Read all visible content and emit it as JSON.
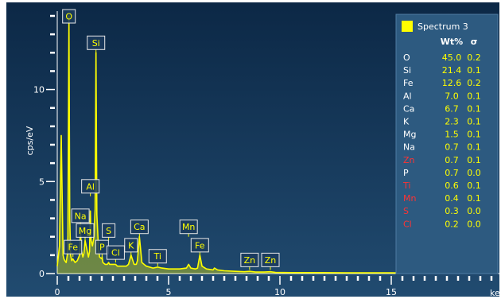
{
  "chart_data": {
    "type": "line",
    "title": "",
    "xlabel": "keV",
    "ylabel": "cps/eV",
    "xlim": [
      0,
      20
    ],
    "ylim": [
      0,
      14
    ],
    "x_ticks": [
      0,
      5,
      10,
      15
    ],
    "y_ticks": [
      0,
      5,
      10
    ],
    "grid": false,
    "series": [
      {
        "name": "Spectrum 3",
        "color": "#ffff00",
        "x": [
          0.0,
          0.1,
          0.18,
          0.26,
          0.3,
          0.34,
          0.4,
          0.45,
          0.48,
          0.525,
          0.56,
          0.6,
          0.65,
          0.7,
          0.8,
          0.9,
          1.0,
          1.04,
          1.08,
          1.15,
          1.2,
          1.25,
          1.3,
          1.4,
          1.45,
          1.487,
          1.52,
          1.58,
          1.65,
          1.7,
          1.74,
          1.78,
          1.85,
          1.9,
          2.0,
          2.013,
          2.05,
          2.15,
          2.25,
          2.307,
          2.35,
          2.45,
          2.55,
          2.622,
          2.7,
          2.9,
          3.1,
          3.2,
          3.313,
          3.45,
          3.55,
          3.6,
          3.691,
          3.8,
          4.0,
          4.3,
          4.51,
          4.7,
          5.0,
          5.5,
          5.8,
          5.899,
          6.0,
          6.2,
          6.3,
          6.403,
          6.5,
          6.7,
          7.0,
          7.058,
          7.2,
          7.5,
          8.0,
          8.4,
          8.638,
          8.9,
          9.3,
          9.572,
          9.8,
          10.5,
          11.5,
          13.0,
          15.0,
          17.0,
          19.0
        ],
        "y": [
          0.4,
          1.5,
          7.5,
          1.0,
          0.8,
          0.7,
          0.6,
          1.0,
          2.0,
          14.0,
          3.0,
          1.0,
          0.7,
          0.8,
          0.6,
          0.7,
          1.0,
          2.5,
          1.3,
          0.9,
          1.1,
          1.8,
          1.5,
          0.9,
          1.2,
          3.4,
          1.8,
          1.5,
          2.0,
          3.5,
          12.0,
          3.2,
          1.4,
          0.9,
          0.8,
          0.9,
          0.6,
          0.5,
          0.5,
          0.6,
          0.5,
          0.5,
          0.5,
          0.5,
          0.4,
          0.4,
          0.4,
          0.5,
          1.0,
          0.5,
          0.5,
          0.7,
          2.0,
          0.6,
          0.4,
          0.3,
          0.35,
          0.3,
          0.25,
          0.25,
          0.3,
          0.5,
          0.3,
          0.25,
          0.3,
          1.0,
          0.4,
          0.25,
          0.2,
          0.3,
          0.2,
          0.15,
          0.12,
          0.1,
          0.12,
          0.08,
          0.08,
          0.1,
          0.06,
          0.05,
          0.05,
          0.04,
          0.04,
          0.03,
          0.03
        ]
      }
    ],
    "peak_labels": [
      {
        "label": "O",
        "x": 0.525,
        "y": 14.0
      },
      {
        "label": "Si",
        "x": 1.74,
        "y": 12.0
      },
      {
        "label": "Al",
        "x": 1.487,
        "y": 4.2
      },
      {
        "label": "Na",
        "x": 1.04,
        "y": 2.6
      },
      {
        "label": "Mg",
        "x": 1.25,
        "y": 1.8
      },
      {
        "label": "S",
        "x": 2.307,
        "y": 1.8
      },
      {
        "label": "Fe",
        "x": 0.705,
        "y": 0.9
      },
      {
        "label": "P",
        "x": 2.013,
        "y": 0.9
      },
      {
        "label": "Cl",
        "x": 2.622,
        "y": 0.6
      },
      {
        "label": "K",
        "x": 3.313,
        "y": 1.0
      },
      {
        "label": "Ca",
        "x": 3.691,
        "y": 2.0
      },
      {
        "label": "Ti",
        "x": 4.51,
        "y": 0.4
      },
      {
        "label": "Mn",
        "x": 5.899,
        "y": 2.0
      },
      {
        "label": "Fe",
        "x": 6.403,
        "y": 1.0
      },
      {
        "label": "Zn",
        "x": 8.638,
        "y": 0.2
      },
      {
        "label": "Zn",
        "x": 9.572,
        "y": 0.2
      }
    ],
    "legend": {
      "placement": "top-right",
      "series_name": "Spectrum 3",
      "col_wt": "Wt%",
      "col_sigma": "σ",
      "rows": [
        {
          "el": "O",
          "wt": "45.0",
          "sigma": "0.2",
          "color": "#ffffff"
        },
        {
          "el": "Si",
          "wt": "21.4",
          "sigma": "0.1",
          "color": "#ffffff"
        },
        {
          "el": "Fe",
          "wt": "12.6",
          "sigma": "0.2",
          "color": "#ffffff"
        },
        {
          "el": "Al",
          "wt": "7.0",
          "sigma": "0.1",
          "color": "#ffffff"
        },
        {
          "el": "Ca",
          "wt": "6.7",
          "sigma": "0.1",
          "color": "#ffffff"
        },
        {
          "el": "K",
          "wt": "2.3",
          "sigma": "0.1",
          "color": "#ffffff"
        },
        {
          "el": "Mg",
          "wt": "1.5",
          "sigma": "0.1",
          "color": "#ffffff"
        },
        {
          "el": "Na",
          "wt": "0.7",
          "sigma": "0.1",
          "color": "#ffffff"
        },
        {
          "el": "Zn",
          "wt": "0.7",
          "sigma": "0.1",
          "color": "#ff3333"
        },
        {
          "el": "P",
          "wt": "0.7",
          "sigma": "0.0",
          "color": "#ffffff"
        },
        {
          "el": "Ti",
          "wt": "0.6",
          "sigma": "0.1",
          "color": "#ff3333"
        },
        {
          "el": "Mn",
          "wt": "0.4",
          "sigma": "0.1",
          "color": "#ff3333"
        },
        {
          "el": "S",
          "wt": "0.3",
          "sigma": "0.0",
          "color": "#ff3333"
        },
        {
          "el": "Cl",
          "wt": "0.2",
          "sigma": "0.0",
          "color": "#ff3333"
        }
      ]
    },
    "colors": {
      "spectrum": "#ffff00",
      "bg_top": "#0d2b4a",
      "bg_bottom": "#244e73",
      "legend_bg": "#2d5a80"
    }
  }
}
